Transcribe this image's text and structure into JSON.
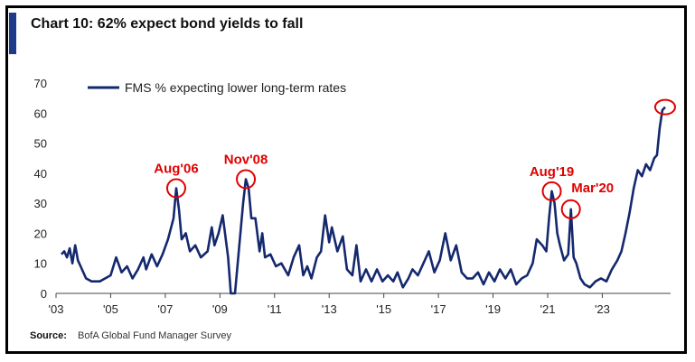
{
  "header": {
    "title": "Chart 10: 62% expect bond yields to fall"
  },
  "footer": {
    "source_label": "Source:",
    "source_text": "BofA Global Fund Manager Survey"
  },
  "chart_data": {
    "type": "line",
    "title": "Chart 10: 62% expect bond yields to fall",
    "xlabel": "",
    "ylabel": "",
    "ylim": [
      0,
      70
    ],
    "xlim": [
      2003.0,
      2025.5
    ],
    "yticks": [
      0,
      10,
      20,
      30,
      40,
      50,
      60,
      70
    ],
    "xticks": [
      {
        "x": 2003.0,
        "label": "'03"
      },
      {
        "x": 2005.0,
        "label": "'05"
      },
      {
        "x": 2007.0,
        "label": "'07"
      },
      {
        "x": 2009.0,
        "label": "'09"
      },
      {
        "x": 2011.0,
        "label": "'11"
      },
      {
        "x": 2013.0,
        "label": "'13"
      },
      {
        "x": 2015.0,
        "label": "'15"
      },
      {
        "x": 2017.0,
        "label": "'17"
      },
      {
        "x": 2019.0,
        "label": "'19"
      },
      {
        "x": 2021.0,
        "label": "'21"
      },
      {
        "x": 2023.0,
        "label": "'23"
      }
    ],
    "legend": {
      "position": "top-left"
    },
    "series": [
      {
        "name": "FMS % expecting lower long-term rates",
        "color": "#14286e",
        "points": [
          [
            2003.2,
            13
          ],
          [
            2003.3,
            14
          ],
          [
            2003.4,
            12
          ],
          [
            2003.5,
            15
          ],
          [
            2003.6,
            10
          ],
          [
            2003.7,
            16
          ],
          [
            2003.8,
            11
          ],
          [
            2003.9,
            9
          ],
          [
            2004.1,
            5
          ],
          [
            2004.3,
            4
          ],
          [
            2004.6,
            4
          ],
          [
            2004.8,
            5
          ],
          [
            2005.0,
            6
          ],
          [
            2005.2,
            12
          ],
          [
            2005.4,
            7
          ],
          [
            2005.6,
            9
          ],
          [
            2005.8,
            5
          ],
          [
            2006.0,
            8
          ],
          [
            2006.2,
            12
          ],
          [
            2006.3,
            8
          ],
          [
            2006.5,
            13
          ],
          [
            2006.7,
            9
          ],
          [
            2006.9,
            13
          ],
          [
            2007.1,
            18
          ],
          [
            2007.3,
            25
          ],
          [
            2007.4,
            35
          ],
          [
            2007.5,
            28
          ],
          [
            2007.6,
            18
          ],
          [
            2007.75,
            20
          ],
          [
            2007.9,
            14
          ],
          [
            2008.1,
            16
          ],
          [
            2008.3,
            12
          ],
          [
            2008.55,
            14
          ],
          [
            2008.7,
            22
          ],
          [
            2008.8,
            16
          ],
          [
            2008.95,
            20
          ],
          [
            2009.1,
            26
          ],
          [
            2009.3,
            12
          ],
          [
            2009.4,
            0
          ],
          [
            2009.55,
            0
          ],
          [
            2009.7,
            15
          ],
          [
            2009.85,
            30
          ],
          [
            2009.95,
            38
          ],
          [
            2010.05,
            35
          ],
          [
            2010.15,
            25
          ],
          [
            2010.3,
            25
          ],
          [
            2010.45,
            14
          ],
          [
            2010.55,
            20
          ],
          [
            2010.65,
            12
          ],
          [
            2010.85,
            13
          ],
          [
            2011.05,
            9
          ],
          [
            2011.25,
            10
          ],
          [
            2011.5,
            6
          ],
          [
            2011.7,
            12
          ],
          [
            2011.9,
            16
          ],
          [
            2012.05,
            6
          ],
          [
            2012.2,
            9
          ],
          [
            2012.35,
            5
          ],
          [
            2012.55,
            12
          ],
          [
            2012.7,
            14
          ],
          [
            2012.85,
            26
          ],
          [
            2013.0,
            17
          ],
          [
            2013.1,
            22
          ],
          [
            2013.3,
            14
          ],
          [
            2013.5,
            19
          ],
          [
            2013.65,
            8
          ],
          [
            2013.85,
            6
          ],
          [
            2014.0,
            16
          ],
          [
            2014.15,
            4
          ],
          [
            2014.35,
            8
          ],
          [
            2014.55,
            4
          ],
          [
            2014.75,
            8
          ],
          [
            2014.95,
            4
          ],
          [
            2015.15,
            6
          ],
          [
            2015.35,
            4
          ],
          [
            2015.5,
            7
          ],
          [
            2015.7,
            2
          ],
          [
            2015.9,
            5
          ],
          [
            2016.05,
            8
          ],
          [
            2016.25,
            6
          ],
          [
            2016.45,
            10
          ],
          [
            2016.65,
            14
          ],
          [
            2016.85,
            7
          ],
          [
            2017.05,
            11
          ],
          [
            2017.25,
            20
          ],
          [
            2017.45,
            11
          ],
          [
            2017.65,
            16
          ],
          [
            2017.85,
            7
          ],
          [
            2018.05,
            5
          ],
          [
            2018.25,
            5
          ],
          [
            2018.45,
            7
          ],
          [
            2018.65,
            3
          ],
          [
            2018.85,
            7
          ],
          [
            2019.05,
            4
          ],
          [
            2019.25,
            8
          ],
          [
            2019.45,
            5
          ],
          [
            2019.65,
            8
          ],
          [
            2019.85,
            3
          ],
          [
            2020.05,
            5
          ],
          [
            2020.25,
            6
          ],
          [
            2020.45,
            10
          ],
          [
            2020.6,
            18
          ],
          [
            2020.8,
            16
          ],
          [
            2020.95,
            14
          ],
          [
            2021.05,
            25
          ],
          [
            2021.15,
            34
          ],
          [
            2021.25,
            30
          ],
          [
            2021.35,
            20
          ],
          [
            2021.45,
            16
          ],
          [
            2021.6,
            11
          ],
          [
            2021.75,
            13
          ],
          [
            2021.85,
            28
          ],
          [
            2021.95,
            12
          ],
          [
            2022.05,
            10
          ],
          [
            2022.2,
            5
          ],
          [
            2022.35,
            3
          ],
          [
            2022.55,
            2
          ],
          [
            2022.75,
            4
          ],
          [
            2022.95,
            5
          ],
          [
            2023.15,
            4
          ],
          [
            2023.35,
            8
          ],
          [
            2023.55,
            11
          ],
          [
            2023.7,
            14
          ],
          [
            2023.85,
            20
          ],
          [
            2024.0,
            27
          ],
          [
            2024.15,
            35
          ],
          [
            2024.3,
            41
          ],
          [
            2024.45,
            39
          ],
          [
            2024.6,
            43
          ],
          [
            2024.75,
            41
          ],
          [
            2024.9,
            45
          ],
          [
            2025.0,
            46
          ],
          [
            2025.1,
            55
          ],
          [
            2025.2,
            61
          ],
          [
            2025.3,
            62
          ]
        ]
      }
    ],
    "annotations": [
      {
        "text": "Aug'06",
        "x": 2007.4,
        "y": 35
      },
      {
        "text": "Nov'08",
        "x": 2009.95,
        "y": 38
      },
      {
        "text": "Aug'19",
        "x": 2021.15,
        "y": 34
      },
      {
        "text": "Mar'20",
        "x": 2021.85,
        "y": 28
      },
      {
        "text": "",
        "x": 2025.3,
        "y": 62
      }
    ]
  }
}
